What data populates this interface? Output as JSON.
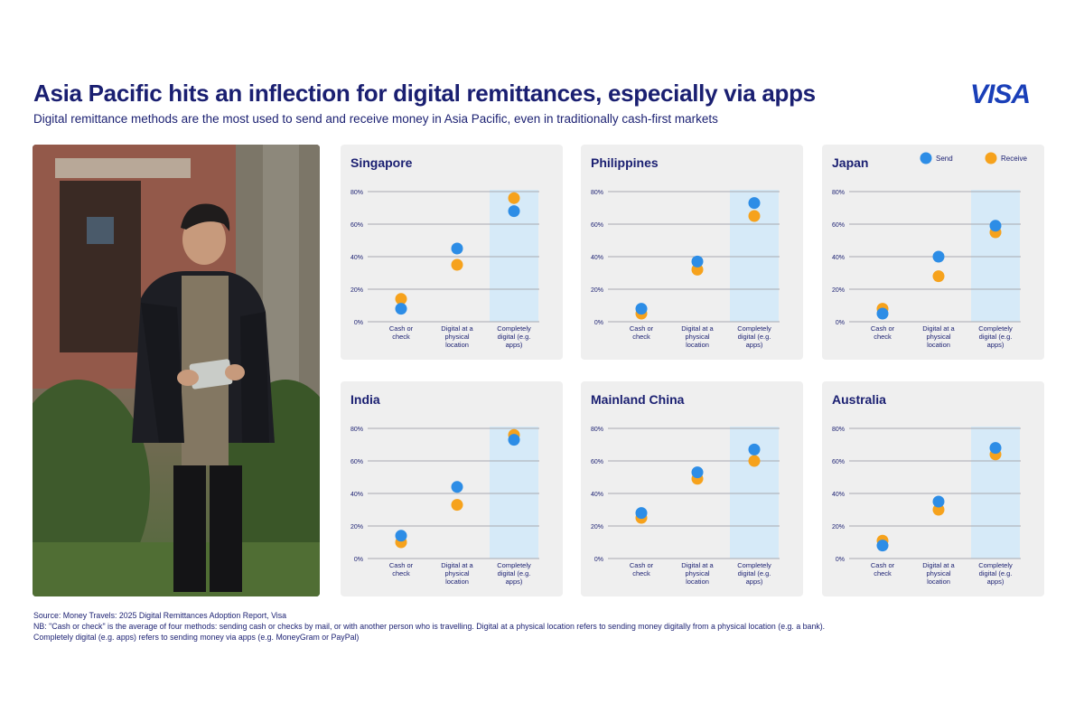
{
  "header": {
    "title": "Asia Pacific hits an inflection for digital remittances, especially via apps",
    "subtitle": "Digital remittance methods are the most used to send and receive money in Asia Pacific, even in traditionally cash-first markets",
    "logo_text": "VISA"
  },
  "colors": {
    "send": "#2d8de6",
    "receive": "#f6a21c",
    "highlight": "#d6eaf8",
    "gridline": "#a8aab0",
    "text": "#1a1f71"
  },
  "legend": {
    "placement": "top-right",
    "send": "Send",
    "receive": "Receive"
  },
  "chart_data": [
    {
      "type": "scatter",
      "title": "Singapore",
      "categories": [
        "Cash or check",
        "Digital at a physical location",
        "Completely digital (e.g. apps)"
      ],
      "category_lines": [
        [
          "Cash or",
          "check"
        ],
        [
          "Digital at a",
          "physical",
          "location"
        ],
        [
          "Completely",
          "digital (e.g.",
          "apps)"
        ]
      ],
      "ylim": [
        0,
        80
      ],
      "yticks": [
        "0%",
        "20%",
        "40%",
        "60%",
        "80%"
      ],
      "series": [
        {
          "name": "Send",
          "values": [
            8,
            45,
            68
          ]
        },
        {
          "name": "Receive",
          "values": [
            14,
            35,
            76
          ]
        }
      ],
      "highlight_category": 2
    },
    {
      "type": "scatter",
      "title": "Philippines",
      "categories": [
        "Cash or check",
        "Digital at a physical location",
        "Completely digital (e.g. apps)"
      ],
      "category_lines": [
        [
          "Cash or",
          "check"
        ],
        [
          "Digital at a",
          "physical",
          "location"
        ],
        [
          "Completely",
          "digital (e.g.",
          "apps)"
        ]
      ],
      "ylim": [
        0,
        80
      ],
      "yticks": [
        "0%",
        "20%",
        "40%",
        "60%",
        "80%"
      ],
      "series": [
        {
          "name": "Send",
          "values": [
            8,
            37,
            73
          ]
        },
        {
          "name": "Receive",
          "values": [
            5,
            32,
            65
          ]
        }
      ],
      "highlight_category": 2
    },
    {
      "type": "scatter",
      "title": "Japan",
      "categories": [
        "Cash or check",
        "Digital at a physical location",
        "Completely digital (e.g. apps)"
      ],
      "category_lines": [
        [
          "Cash or",
          "check"
        ],
        [
          "Digital at a",
          "physical",
          "location"
        ],
        [
          "Completely",
          "digital (e.g.",
          "apps)"
        ]
      ],
      "ylim": [
        0,
        80
      ],
      "yticks": [
        "0%",
        "20%",
        "40%",
        "60%",
        "80%"
      ],
      "series": [
        {
          "name": "Send",
          "values": [
            5,
            40,
            59
          ]
        },
        {
          "name": "Receive",
          "values": [
            8,
            28,
            55
          ]
        }
      ],
      "highlight_category": 2,
      "show_legend": true
    },
    {
      "type": "scatter",
      "title": "India",
      "categories": [
        "Cash or check",
        "Digital at a physical location",
        "Completely digital (e.g. apps)"
      ],
      "category_lines": [
        [
          "Cash or",
          "check"
        ],
        [
          "Digital at a",
          "physical",
          "location"
        ],
        [
          "Completely",
          "digital (e.g.",
          "apps)"
        ]
      ],
      "ylim": [
        0,
        80
      ],
      "yticks": [
        "0%",
        "20%",
        "40%",
        "60%",
        "80%"
      ],
      "series": [
        {
          "name": "Send",
          "values": [
            14,
            44,
            73
          ]
        },
        {
          "name": "Receive",
          "values": [
            10,
            33,
            76
          ]
        }
      ],
      "highlight_category": 2
    },
    {
      "type": "scatter",
      "title": "Mainland China",
      "categories": [
        "Cash or check",
        "Digital at a physical location",
        "Completely digital (e.g. apps)"
      ],
      "category_lines": [
        [
          "Cash or",
          "check"
        ],
        [
          "Digital at a",
          "physical",
          "location"
        ],
        [
          "Completely",
          "digital (e.g.",
          "apps)"
        ]
      ],
      "ylim": [
        0,
        80
      ],
      "yticks": [
        "0%",
        "20%",
        "40%",
        "60%",
        "80%"
      ],
      "series": [
        {
          "name": "Send",
          "values": [
            28,
            53,
            67
          ]
        },
        {
          "name": "Receive",
          "values": [
            25,
            49,
            60
          ]
        }
      ],
      "highlight_category": 2
    },
    {
      "type": "scatter",
      "title": "Australia",
      "categories": [
        "Cash or check",
        "Digital at a physical location",
        "Completely digital (e.g. apps)"
      ],
      "category_lines": [
        [
          "Cash or",
          "check"
        ],
        [
          "Digital at a",
          "physical",
          "location"
        ],
        [
          "Completely",
          "digital (e.g.",
          "apps)"
        ]
      ],
      "ylim": [
        0,
        80
      ],
      "yticks": [
        "0%",
        "20%",
        "40%",
        "60%",
        "80%"
      ],
      "series": [
        {
          "name": "Send",
          "values": [
            8,
            35,
            68
          ]
        },
        {
          "name": "Receive",
          "values": [
            11,
            30,
            64
          ]
        }
      ],
      "highlight_category": 2
    }
  ],
  "footer": {
    "source": "Source: Money Travels: 2025 Digital Remittances Adoption Report, Visa",
    "note_1": "NB: \"Cash or check\" is the average of four methods: sending cash or checks by mail, or with another person who is travelling. Digital at a physical location refers to sending money digitally from a physical location (e.g. a bank).",
    "note_2": "Completely digital (e.g. apps) refers to sending money via apps (e.g. MoneyGram or PayPal)"
  }
}
